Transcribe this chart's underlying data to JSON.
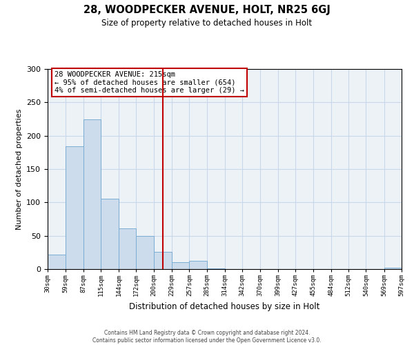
{
  "title": "28, WOODPECKER AVENUE, HOLT, NR25 6GJ",
  "subtitle": "Size of property relative to detached houses in Holt",
  "xlabel": "Distribution of detached houses by size in Holt",
  "ylabel": "Number of detached properties",
  "bar_color": "#cddcec",
  "bar_edge_color": "#7aadd4",
  "bin_edges": [
    30,
    59,
    87,
    115,
    144,
    172,
    200,
    229,
    257,
    285,
    314,
    342,
    370,
    399,
    427,
    455,
    484,
    512,
    540,
    569,
    597
  ],
  "bar_heights": [
    22,
    184,
    225,
    106,
    61,
    50,
    26,
    10,
    12,
    1,
    0,
    0,
    0,
    0,
    0,
    0,
    0,
    0,
    0,
    2
  ],
  "vline_x": 215,
  "vline_color": "#c00000",
  "ylim": [
    0,
    300
  ],
  "yticks": [
    0,
    50,
    100,
    150,
    200,
    250,
    300
  ],
  "annotation_title": "28 WOODPECKER AVENUE: 215sqm",
  "annotation_line1": "← 95% of detached houses are smaller (654)",
  "annotation_line2": "4% of semi-detached houses are larger (29) →",
  "annotation_box_color": "#ffffff",
  "annotation_box_edge_color": "#c00000",
  "footer1": "Contains HM Land Registry data © Crown copyright and database right 2024.",
  "footer2": "Contains public sector information licensed under the Open Government Licence v3.0.",
  "background_color": "#edf2f7",
  "grid_color": "#c8d8e8",
  "tick_labels": [
    "30sqm",
    "59sqm",
    "87sqm",
    "115sqm",
    "144sqm",
    "172sqm",
    "200sqm",
    "229sqm",
    "257sqm",
    "285sqm",
    "314sqm",
    "342sqm",
    "370sqm",
    "399sqm",
    "427sqm",
    "455sqm",
    "484sqm",
    "512sqm",
    "540sqm",
    "569sqm",
    "597sqm"
  ]
}
